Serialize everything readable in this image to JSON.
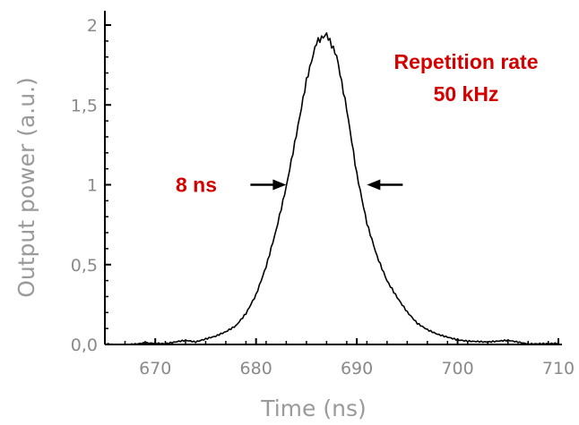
{
  "chart_data": {
    "type": "line",
    "title": "",
    "xlabel": "Time (ns)",
    "ylabel": "Output power (a.u.)",
    "xlim": [
      665,
      710
    ],
    "ylim": [
      0,
      2
    ],
    "x_ticks": [
      670,
      680,
      690,
      700,
      710
    ],
    "x_tick_labels": [
      "670",
      "680",
      "690",
      "700",
      "710"
    ],
    "y_ticks": [
      0,
      0.5,
      1,
      1.5,
      2
    ],
    "y_tick_labels": [
      "0,0",
      "0,5",
      "1",
      "1,5",
      "2"
    ],
    "grid": false,
    "legend": "none",
    "series": [
      {
        "color": "#000000",
        "x": [
          665,
          667,
          669,
          671,
          673,
          674,
          675,
          676,
          677,
          678,
          679,
          680,
          681,
          682,
          683,
          684,
          685,
          686,
          687,
          688,
          689,
          690,
          691,
          692,
          693,
          694,
          695,
          696,
          697,
          698,
          699,
          700,
          701,
          703,
          705,
          707,
          710
        ],
        "y": [
          0.01,
          0.0,
          0.01,
          0.0,
          0.02,
          0.01,
          0.03,
          0.05,
          0.08,
          0.12,
          0.2,
          0.32,
          0.5,
          0.73,
          1.0,
          1.32,
          1.65,
          1.88,
          1.92,
          1.78,
          1.45,
          1.05,
          0.75,
          0.55,
          0.4,
          0.3,
          0.21,
          0.14,
          0.1,
          0.07,
          0.05,
          0.03,
          0.02,
          0.01,
          0.02,
          0.0,
          0.01
        ]
      }
    ],
    "annotations": {
      "fwhm_label": "8 ns",
      "fwhm_level": 1.0,
      "fwhm_x": [
        683,
        691
      ],
      "rate_line1": "Repetition rate",
      "rate_line2": "50 kHz",
      "annotation_color": "#d40000"
    }
  }
}
